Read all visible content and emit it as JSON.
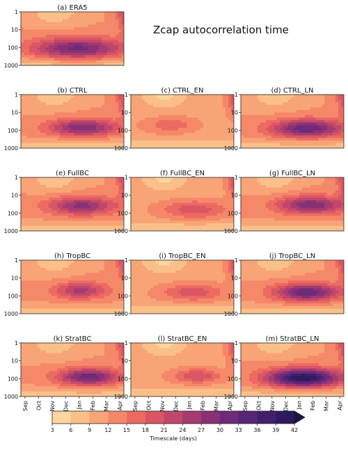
{
  "chart_data": {
    "type": "heatmap",
    "title": "Zcap autocorrelation time",
    "months": [
      "Sep",
      "Oct",
      "Nov",
      "Dec",
      "Jan",
      "Feb",
      "Mar",
      "Apr"
    ],
    "y_ticks": [
      "1",
      "10",
      "100",
      "1000"
    ],
    "y_scale": "log",
    "y_range": [
      1000,
      1
    ],
    "panels": [
      {
        "label": "(a) ERA5",
        "core": [
          3.9,
          2.05
        ],
        "spread": [
          2.4,
          0.42
        ],
        "peak": 31,
        "base": 12
      },
      {
        "label": "(b) CTRL",
        "core": [
          4.3,
          1.85
        ],
        "spread": [
          1.8,
          0.33
        ],
        "peak": 30,
        "base": 12
      },
      {
        "label": "(c) CTRL_EN",
        "core": [
          2.6,
          1.7
        ],
        "spread": [
          1.3,
          0.3
        ],
        "peak": 17,
        "base": 11
      },
      {
        "label": "(d) CTRL_LN",
        "core": [
          4.6,
          1.9
        ],
        "spread": [
          1.9,
          0.35
        ],
        "peak": 33,
        "base": 12
      },
      {
        "label": "(e) FullBC",
        "core": [
          4.2,
          1.6
        ],
        "spread": [
          1.8,
          0.35
        ],
        "peak": 28,
        "base": 12
      },
      {
        "label": "(f) FullBC_EN",
        "core": [
          4.4,
          1.8
        ],
        "spread": [
          1.7,
          0.35
        ],
        "peak": 20,
        "base": 11
      },
      {
        "label": "(g) FullBC_LN",
        "core": [
          4.9,
          1.55
        ],
        "spread": [
          1.8,
          0.35
        ],
        "peak": 30,
        "base": 12
      },
      {
        "label": "(h) TropBC",
        "core": [
          4.1,
          1.7
        ],
        "spread": [
          1.4,
          0.32
        ],
        "peak": 25,
        "base": 12
      },
      {
        "label": "(i) TropBC_EN",
        "core": [
          4.3,
          1.8
        ],
        "spread": [
          1.6,
          0.33
        ],
        "peak": 20,
        "base": 11
      },
      {
        "label": "(j) TropBC_LN",
        "core": [
          4.6,
          1.8
        ],
        "spread": [
          1.7,
          0.34
        ],
        "peak": 33,
        "base": 12
      },
      {
        "label": "(k) StratBC",
        "core": [
          4.7,
          1.9
        ],
        "spread": [
          1.6,
          0.33
        ],
        "peak": 32,
        "base": 12
      },
      {
        "label": "(l) StratBC_EN",
        "core": [
          4.6,
          1.85
        ],
        "spread": [
          1.2,
          0.28
        ],
        "peak": 21,
        "base": 11
      },
      {
        "label": "(m) StratBC_LN",
        "core": [
          4.3,
          1.95
        ],
        "spread": [
          1.9,
          0.36
        ],
        "peak": 42,
        "base": 12
      }
    ],
    "colorbar": {
      "ticks": [
        3,
        6,
        9,
        12,
        15,
        18,
        21,
        24,
        27,
        30,
        33,
        36,
        39,
        42
      ],
      "label": "Timescale (days)",
      "extend": "max",
      "colors": [
        "#fdd59e",
        "#fbc08a",
        "#f8a476",
        "#f58869",
        "#ec6a60",
        "#d95764",
        "#c1476a",
        "#a53b70",
        "#893175",
        "#6e2b78",
        "#572577",
        "#421f6e",
        "#2e1a5f",
        "#1c1448"
      ]
    }
  }
}
